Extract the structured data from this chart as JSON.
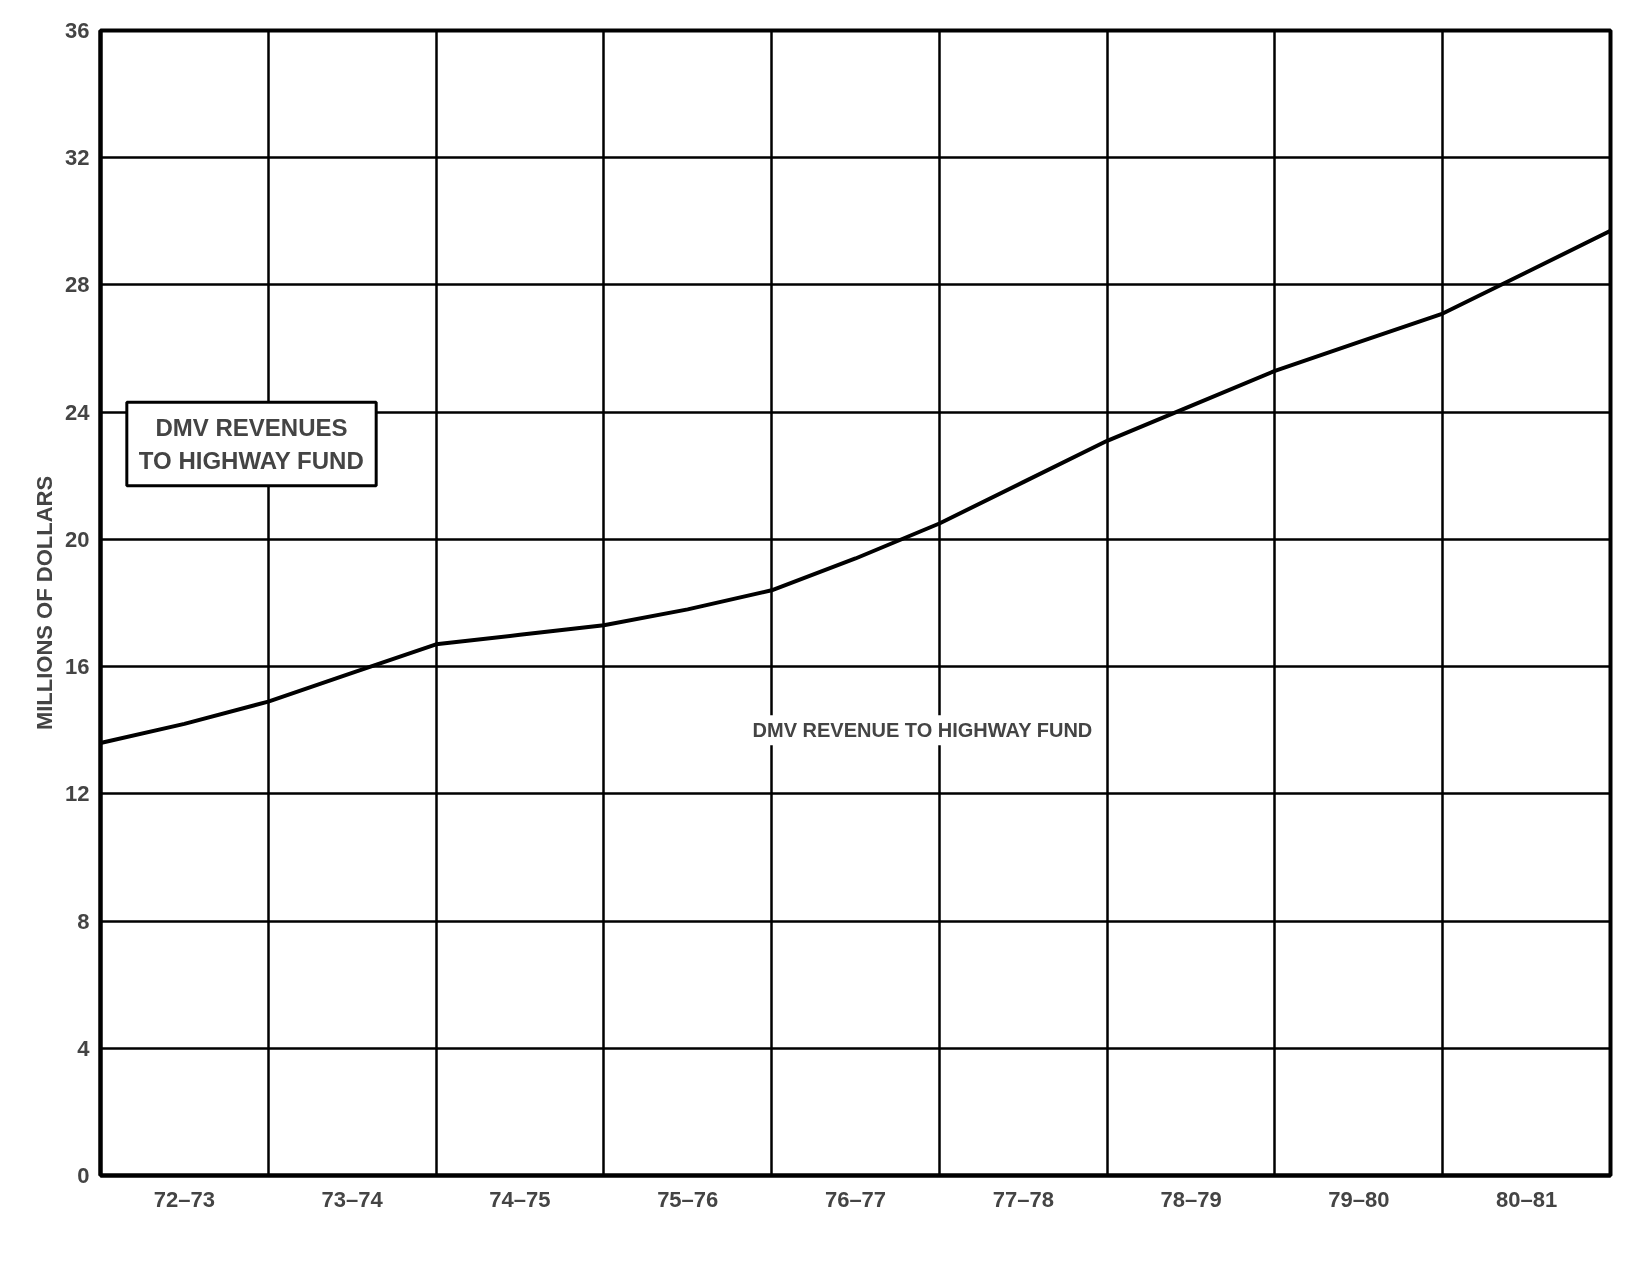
{
  "chart_data": {
    "type": "line",
    "ylabel": "MILLIONS OF DOLLARS",
    "categories": [
      null,
      "72–73",
      null,
      "73–74",
      null,
      "74–75",
      null,
      "75–76",
      null,
      "76–77",
      null,
      "77–78",
      null,
      "78–79",
      null,
      "79–80",
      null,
      "80–81",
      null
    ],
    "series": [
      {
        "color": "#000000",
        "values": [
          13.6,
          14.2,
          14.9,
          15.8,
          16.7,
          17.0,
          17.3,
          17.8,
          18.4,
          19.4,
          20.5,
          21.8,
          23.1,
          24.2,
          25.3,
          26.2,
          27.1,
          28.4,
          29.7
        ]
      }
    ],
    "ylim": [
      0,
      36
    ],
    "yticks": [
      0,
      4,
      8,
      12,
      16,
      20,
      24,
      28,
      32,
      36
    ],
    "grid": true,
    "marker": "none",
    "line_style": "solid",
    "annotations": [
      "DMV REVENUES\nTO HIGHWAY FUND",
      "DMV REVENUE TO HIGHWAY FUND"
    ]
  }
}
